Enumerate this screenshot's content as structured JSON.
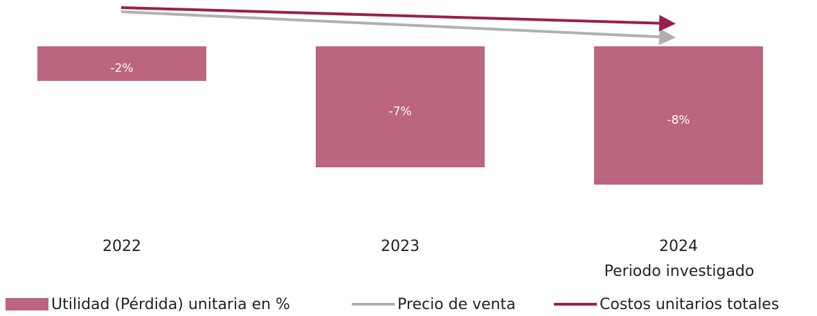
{
  "chart_data": {
    "type": "bar",
    "categories": [
      "2022",
      "2023",
      "2024"
    ],
    "values": [
      -2,
      -7,
      -8
    ],
    "value_labels": [
      "-2%",
      "-7%",
      "-8%"
    ],
    "color": "#bc657e",
    "ylim": [
      -10,
      0
    ],
    "bar_name": "Utilidad (Pérdida) unitaria en %",
    "annotation": "Periodo investigado",
    "series": [
      {
        "name": "Precio de venta",
        "color": "#b0b0b0"
      },
      {
        "name": "Costos unitarios totales",
        "color": "#9c1f4b"
      }
    ]
  }
}
